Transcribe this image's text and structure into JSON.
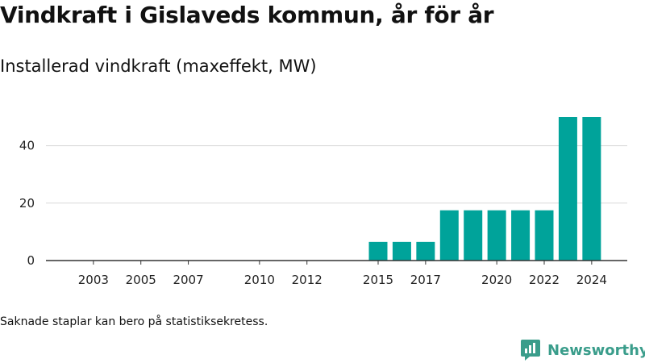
{
  "title": "Vindkraft i Gislaveds kommun, år för år",
  "subtitle": "Installerad vindkraft (maxeffekt, MW)",
  "footnote": "Saknade staplar kan bero på statistiksekretess.",
  "brand": {
    "name": "Newsworthy",
    "icon": "newsworthy-logo-icon",
    "color": "#3a9d8b"
  },
  "colors": {
    "bar": "#00a39a",
    "grid": "#d9d9d9",
    "axis": "#333333"
  },
  "chart_data": {
    "type": "bar",
    "title": "Vindkraft i Gislaveds kommun, år för år",
    "subtitle": "Installerad vindkraft (maxeffekt, MW)",
    "xlabel": "",
    "ylabel": "",
    "x": [
      2003,
      2004,
      2005,
      2006,
      2007,
      2008,
      2009,
      2010,
      2011,
      2012,
      2013,
      2014,
      2015,
      2016,
      2017,
      2018,
      2019,
      2020,
      2021,
      2022,
      2023,
      2024
    ],
    "values": [
      null,
      null,
      null,
      null,
      null,
      null,
      null,
      null,
      null,
      null,
      null,
      null,
      6.5,
      6.5,
      6.5,
      17.5,
      17.5,
      17.5,
      17.5,
      17.5,
      50,
      50
    ],
    "xticks": [
      2003,
      2005,
      2007,
      2010,
      2012,
      2015,
      2017,
      2020,
      2022,
      2024
    ],
    "yticks": [
      0,
      20,
      40
    ],
    "ylim": [
      0,
      50
    ],
    "grid": true,
    "legend": "none"
  }
}
